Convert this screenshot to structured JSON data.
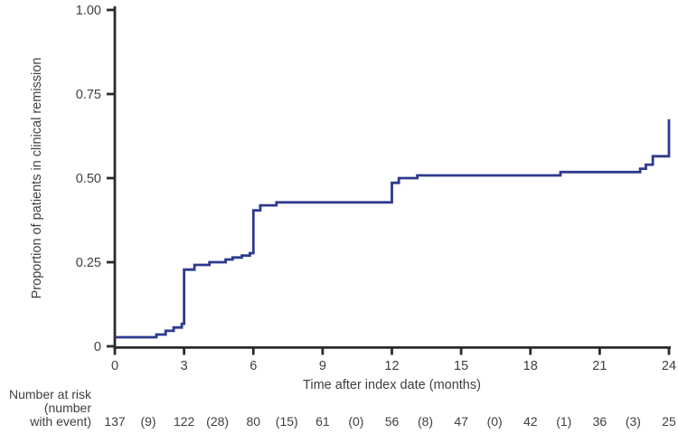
{
  "colors": {
    "background": "#ffffff",
    "axis": "#2b2b2b",
    "text": "#3f3f3f",
    "curve": "#2e3a8e"
  },
  "chart_data": {
    "type": "line",
    "variant": "kaplan-meier-step-curve",
    "title": "",
    "xlabel": "Time after index date (months)",
    "ylabel": "Proportion of patients in clinical remission",
    "xlim": [
      0,
      24
    ],
    "ylim": [
      0,
      1.0
    ],
    "grid": false,
    "legend_position": "none",
    "x_ticks": [
      {
        "v": 0,
        "label": "0"
      },
      {
        "v": 3,
        "label": "3"
      },
      {
        "v": 6,
        "label": "6"
      },
      {
        "v": 9,
        "label": "9"
      },
      {
        "v": 12,
        "label": "12"
      },
      {
        "v": 15,
        "label": "15"
      },
      {
        "v": 18,
        "label": "18"
      },
      {
        "v": 21,
        "label": "21"
      },
      {
        "v": 24,
        "label": "24"
      }
    ],
    "y_ticks": [
      {
        "v": 0,
        "label": "0"
      },
      {
        "v": 0.25,
        "label": "0.25"
      },
      {
        "v": 0.5,
        "label": "0.50"
      },
      {
        "v": 0.75,
        "label": "0.75"
      },
      {
        "v": 1.0,
        "label": "1.00"
      }
    ],
    "series": [
      {
        "name": "Proportion of patients in clinical remission",
        "color": "#2e3a8e",
        "steps": [
          [
            0.0,
            0.027
          ],
          [
            1.8,
            0.035
          ],
          [
            2.2,
            0.046
          ],
          [
            2.55,
            0.056
          ],
          [
            2.9,
            0.067
          ],
          [
            3.0,
            0.228
          ],
          [
            3.45,
            0.242
          ],
          [
            4.1,
            0.25
          ],
          [
            4.8,
            0.258
          ],
          [
            5.1,
            0.264
          ],
          [
            5.5,
            0.27
          ],
          [
            5.85,
            0.277
          ],
          [
            6.0,
            0.404
          ],
          [
            6.3,
            0.419
          ],
          [
            7.0,
            0.428
          ],
          [
            12.0,
            0.486
          ],
          [
            12.3,
            0.5
          ],
          [
            13.1,
            0.508
          ],
          [
            19.3,
            0.518
          ],
          [
            22.75,
            0.528
          ],
          [
            23.0,
            0.54
          ],
          [
            23.3,
            0.565
          ],
          [
            24.0,
            0.675
          ]
        ]
      }
    ],
    "risk_table": {
      "header_lines": [
        "Number at risk",
        "(number",
        "with event)"
      ],
      "times": [
        0,
        3,
        6,
        9,
        12,
        15,
        18,
        21,
        24
      ],
      "number_at_risk": [
        "137",
        "122",
        "80",
        "61",
        "56",
        "47",
        "42",
        "36",
        "25"
      ],
      "number_with_event": [
        "(9)",
        "(28)",
        "(15)",
        "(0)",
        "(8)",
        "(0)",
        "(1)",
        "(3)"
      ]
    }
  }
}
